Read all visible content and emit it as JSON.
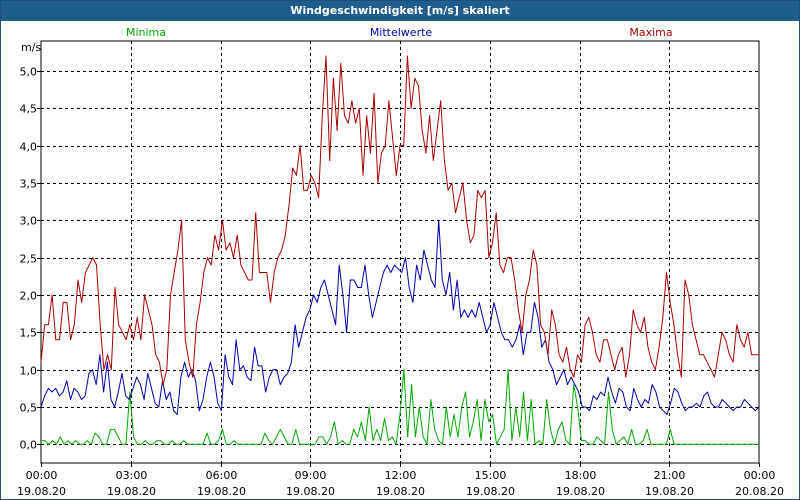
{
  "window": {
    "title": "Windgeschwindigkeit [m/s] skaliert"
  },
  "chart_data": {
    "type": "line",
    "title": "Windgeschwindigkeit [m/s] skaliert",
    "ylabel": "m/s",
    "ylim": [
      -0.25,
      5.4
    ],
    "yticks": [
      "0,0",
      "0,5",
      "1,0",
      "1,5",
      "2,0",
      "2,5",
      "3,0",
      "3,5",
      "4,0",
      "4,5",
      "5,0"
    ],
    "xticks": [
      {
        "time": "00:00",
        "date": "19.08.20"
      },
      {
        "time": "03:00",
        "date": "19.08.20"
      },
      {
        "time": "06:00",
        "date": "19.08.20"
      },
      {
        "time": "09:00",
        "date": "19.08.20"
      },
      {
        "time": "12:00",
        "date": "19.08.20"
      },
      {
        "time": "15:00",
        "date": "19.08.20"
      },
      {
        "time": "18:00",
        "date": "19.08.20"
      },
      {
        "time": "21:00",
        "date": "19.08.20"
      },
      {
        "time": "00:00",
        "date": "20.08.20"
      }
    ],
    "grid": true,
    "legend": "top",
    "series": [
      {
        "name": "Minima",
        "color": "#00aa00",
        "values": [
          0.05,
          0.05,
          0.0,
          0.05,
          0.0,
          0.1,
          0.0,
          0.05,
          0.0,
          0.05,
          0.0,
          0.0,
          0.05,
          0.0,
          0.15,
          0.1,
          0.0,
          0.0,
          0.2,
          0.2,
          0.1,
          0.0,
          0.0,
          0.7,
          0.1,
          0.0,
          0.0,
          0.05,
          0.0,
          0.0,
          0.05,
          0.05,
          0.0,
          0.0,
          0.05,
          0.0,
          0.0,
          0.05,
          0.0,
          0.0,
          0.0,
          0.0,
          0.0,
          0.15,
          0.0,
          0.0,
          0.05,
          0.2,
          0.0,
          0.0,
          0.05,
          0.0,
          0.0,
          0.0,
          0.0,
          0.0,
          0.0,
          0.0,
          0.15,
          0.05,
          0.0,
          0.1,
          0.2,
          0.1,
          0.0,
          0.0,
          0.2,
          0.0,
          0.0,
          0.0,
          0.0,
          0.0,
          0.1,
          0.1,
          0.0,
          0.1,
          0.3,
          0.0,
          0.05,
          0.0,
          0.0,
          0.2,
          0.1,
          0.3,
          0.05,
          0.5,
          0.05,
          0.2,
          0.05,
          0.35,
          0.05,
          0.1,
          0.0,
          0.4,
          1.0,
          0.1,
          0.8,
          0.1,
          0.5,
          0.1,
          0.0,
          0.6,
          0.2,
          0.05,
          0.0,
          0.5,
          0.1,
          0.4,
          0.1,
          0.5,
          0.7,
          0.1,
          0.3,
          0.6,
          0.05,
          0.6,
          0.3,
          0.4,
          0.0,
          0.1,
          0.2,
          1.0,
          0.05,
          0.5,
          0.1,
          0.7,
          0.05,
          0.6,
          0.0,
          0.05,
          0.0,
          0.6,
          0.2,
          0.0,
          0.2,
          0.3,
          0.05,
          0.0,
          0.8,
          0.5,
          0.05,
          0.05,
          0.0,
          0.0,
          0.1,
          0.05,
          0.0,
          0.7,
          0.2,
          0.0,
          0.05,
          0.1,
          0.0,
          0.2,
          0.0,
          0.0,
          0.05,
          0.2,
          0.0,
          0.0,
          0.0,
          0.0,
          0.0,
          0.2,
          0.0,
          0.0,
          0.0,
          0.0,
          0.0,
          0.0,
          0.0,
          0.0,
          0.0,
          0.0,
          0.0,
          0.0,
          0.0,
          0.0,
          0.0,
          0.0,
          0.0,
          0.0,
          0.0,
          0.0,
          0.0,
          0.0,
          0.0
        ]
      },
      {
        "name": "Mittelwerte",
        "color": "#0000aa",
        "values": [
          0.5,
          0.65,
          0.75,
          0.7,
          0.75,
          0.65,
          0.7,
          0.85,
          0.6,
          0.75,
          0.7,
          0.6,
          0.65,
          0.95,
          1.0,
          0.8,
          1.2,
          0.7,
          1.1,
          0.6,
          0.5,
          0.7,
          0.95,
          0.65,
          0.6,
          0.75,
          0.9,
          0.8,
          0.6,
          0.95,
          0.75,
          0.55,
          0.5,
          0.85,
          0.6,
          0.7,
          0.45,
          0.4,
          0.9,
          1.1,
          0.9,
          1.0,
          0.85,
          0.45,
          0.6,
          0.9,
          1.1,
          0.9,
          0.55,
          0.45,
          1.2,
          0.9,
          0.8,
          1.4,
          1.0,
          1.05,
          0.9,
          0.85,
          1.3,
          1.05,
          1.05,
          0.7,
          0.9,
          1.0,
          1.0,
          0.8,
          0.9,
          0.95,
          1.1,
          1.6,
          1.3,
          1.5,
          1.7,
          1.8,
          2.0,
          1.9,
          2.1,
          2.2,
          2.0,
          1.8,
          1.6,
          2.4,
          2.0,
          1.5,
          2.2,
          2.2,
          2.1,
          2.1,
          2.4,
          2.0,
          1.7,
          1.9,
          2.1,
          2.3,
          2.4,
          2.3,
          2.4,
          2.35,
          2.3,
          2.5,
          2.1,
          1.9,
          2.4,
          2.2,
          2.6,
          2.4,
          2.2,
          2.1,
          3.0,
          2.2,
          2.0,
          2.3,
          1.8,
          2.2,
          1.7,
          1.8,
          1.7,
          1.8,
          1.7,
          1.9,
          1.7,
          1.5,
          1.6,
          1.9,
          1.7,
          1.5,
          1.4,
          1.4,
          1.3,
          1.4,
          1.6,
          1.2,
          1.5,
          1.5,
          1.9,
          1.7,
          1.3,
          1.4,
          1.1,
          1.0,
          0.8,
          0.9,
          1.0,
          0.8,
          0.9,
          0.8,
          0.7,
          0.5,
          0.5,
          0.45,
          0.65,
          0.6,
          0.7,
          0.65,
          0.9,
          0.7,
          0.55,
          0.75,
          0.7,
          0.5,
          0.45,
          0.75,
          0.6,
          0.5,
          0.6,
          0.55,
          0.8,
          0.7,
          0.5,
          0.45,
          0.4,
          0.55,
          0.75,
          0.7,
          0.55,
          0.45,
          0.5,
          0.5,
          0.55,
          0.5,
          0.65,
          0.7,
          0.55,
          0.5,
          0.5,
          0.6,
          0.55,
          0.5,
          0.45,
          0.5,
          0.5,
          0.6,
          0.55,
          0.5,
          0.45,
          0.5
        ]
      },
      {
        "name": "Maxima",
        "color": "#aa0000",
        "values": [
          1.1,
          1.6,
          1.6,
          2.0,
          1.4,
          1.4,
          1.9,
          1.9,
          1.4,
          1.6,
          2.2,
          1.9,
          2.3,
          2.4,
          2.5,
          2.4,
          1.6,
          1.0,
          1.2,
          1.0,
          2.1,
          1.6,
          1.5,
          1.4,
          1.6,
          1.4,
          1.7,
          1.4,
          2.0,
          1.8,
          1.6,
          1.2,
          1.1,
          0.8,
          1.0,
          2.0,
          2.3,
          2.6,
          3.0,
          1.4,
          1.1,
          0.9,
          1.6,
          1.9,
          2.3,
          2.5,
          2.4,
          2.8,
          2.6,
          3.0,
          2.6,
          2.7,
          2.5,
          2.8,
          2.4,
          2.3,
          2.2,
          2.2,
          3.1,
          2.3,
          2.3,
          2.3,
          1.9,
          2.3,
          2.5,
          2.6,
          2.8,
          3.2,
          3.7,
          3.6,
          4.0,
          3.4,
          3.4,
          3.6,
          3.5,
          3.3,
          4.4,
          5.2,
          3.8,
          4.9,
          4.2,
          5.1,
          4.4,
          4.3,
          4.6,
          4.3,
          4.5,
          3.6,
          4.4,
          3.9,
          4.7,
          3.5,
          3.9,
          4.0,
          4.6,
          4.1,
          3.6,
          4.0,
          4.0,
          5.2,
          4.5,
          4.9,
          4.8,
          4.2,
          3.9,
          4.4,
          3.8,
          4.2,
          4.6,
          3.8,
          3.4,
          3.5,
          3.1,
          3.3,
          3.5,
          3.0,
          2.7,
          2.8,
          3.4,
          3.3,
          3.4,
          2.5,
          2.7,
          3.1,
          2.4,
          2.3,
          2.5,
          2.5,
          2.2,
          1.8,
          1.5,
          2.0,
          2.2,
          2.6,
          2.4,
          1.6,
          1.5,
          1.2,
          1.8,
          1.6,
          1.2,
          1.1,
          1.3,
          1.0,
          0.9,
          1.2,
          1.1,
          1.6,
          1.7,
          1.5,
          1.2,
          1.1,
          1.4,
          1.4,
          1.2,
          1.0,
          1.2,
          1.3,
          0.9,
          1.2,
          1.8,
          1.6,
          1.5,
          1.7,
          1.3,
          1.1,
          1.0,
          1.3,
          1.7,
          2.3,
          1.9,
          1.6,
          1.2,
          0.9,
          2.2,
          2.0,
          1.6,
          1.4,
          1.2,
          1.2,
          1.1,
          1.0,
          0.9,
          1.2,
          1.5,
          1.4,
          1.2,
          1.1,
          1.6,
          1.4,
          1.3,
          1.5,
          1.2,
          1.2,
          1.2
        ]
      }
    ]
  }
}
